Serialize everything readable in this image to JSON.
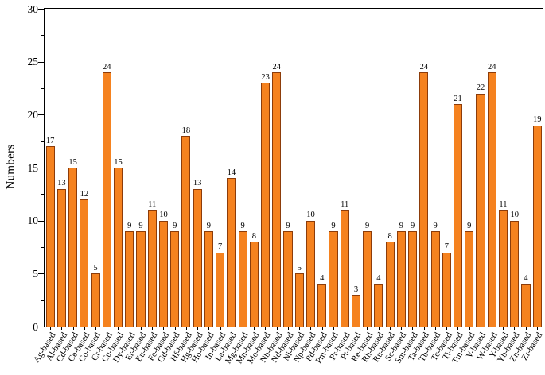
{
  "chart_data": {
    "type": "bar",
    "title": "",
    "xlabel": "",
    "ylabel": "Numbers",
    "ylim": [
      0,
      30
    ],
    "yticks": [
      0,
      5,
      10,
      15,
      20,
      25,
      30
    ],
    "grid": false,
    "legend": false,
    "bar_fill": "#f5821f",
    "bar_edge": "#8c3c0a",
    "categories": [
      "Ag-based",
      "Al-based",
      "Cd-based",
      "Ce-based",
      "Co-based",
      "Cr-based",
      "Cu-based",
      "Dy-based",
      "Er-based",
      "Eu-based",
      "Fe-based",
      "Gd-based",
      "Hf-based",
      "Hg-based",
      "Ho-based",
      "In-based",
      "La-based",
      "Mg-based",
      "Mn-based",
      "Mo-based",
      "Nb-based",
      "Nd-based",
      "Ni-based",
      "Np-based",
      "Pd-based",
      "Pm-based",
      "Pr-based",
      "Pt-based",
      "Re-based",
      "Rh-based",
      "Ru-based",
      "Sc-based",
      "Sm-based",
      "Ta-based",
      "Tb-based",
      "Tc-based",
      "Ti-based",
      "Tm-based",
      "V-based",
      "W-based",
      "Y-based",
      "Yb-based",
      "Zn-based",
      "Zr-based"
    ],
    "values": [
      17,
      13,
      15,
      12,
      5,
      24,
      15,
      9,
      9,
      11,
      10,
      9,
      18,
      13,
      9,
      7,
      14,
      9,
      8,
      23,
      24,
      9,
      5,
      10,
      4,
      9,
      11,
      3,
      9,
      4,
      8,
      9,
      9,
      24,
      9,
      7,
      21,
      9,
      22,
      24,
      11,
      10,
      4,
      19
    ]
  }
}
